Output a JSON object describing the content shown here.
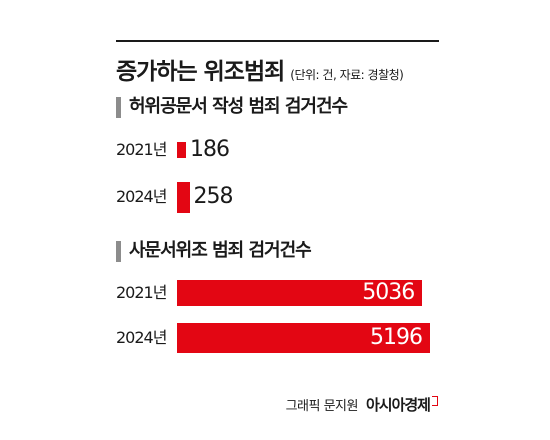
{
  "title": "증가하는 위조범죄",
  "subtitle": "(단위: 건, 자료: 경찰청)",
  "credit": {
    "label": "그래픽 문지원",
    "brand": "아시아경제"
  },
  "chart_data": [
    {
      "type": "bar",
      "orientation": "horizontal",
      "title": "허위공문서 작성 범죄 검거건수",
      "categories": [
        "2021년",
        "2024년"
      ],
      "values": [
        186,
        258
      ],
      "color": "#e30613"
    },
    {
      "type": "bar",
      "orientation": "horizontal",
      "title": "사문서위조 범죄 검거건수",
      "categories": [
        "2021년",
        "2024년"
      ],
      "values": [
        5036,
        5196
      ],
      "color": "#e30613"
    }
  ]
}
